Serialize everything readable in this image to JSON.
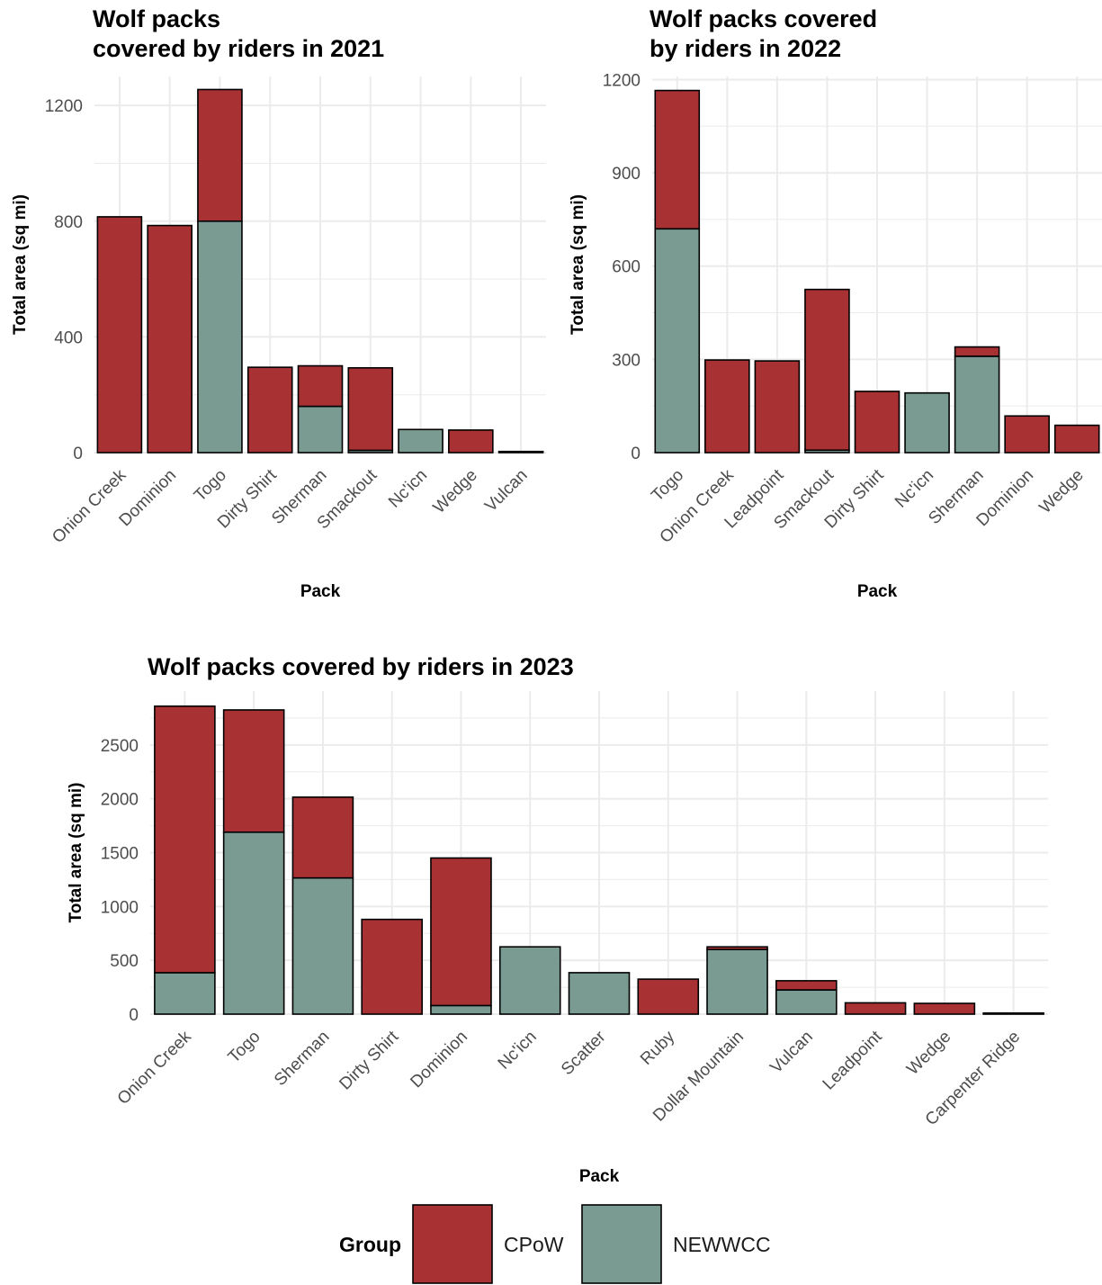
{
  "chart_data": [
    {
      "type": "bar",
      "stacked": true,
      "title": [
        "Wolf packs",
        "covered by riders in 2021"
      ],
      "xlabel": "Pack",
      "ylabel": "Total area (sq mi)",
      "ylim": [
        0,
        1300
      ],
      "yticks": [
        0,
        400,
        800,
        1200
      ],
      "categories": [
        "Onion Creek",
        "Dominion",
        "Togo",
        "Dirty Shirt",
        "Sherman",
        "Smackout",
        "Nc'icn",
        "Wedge",
        "Vulcan"
      ],
      "series": [
        {
          "name": "NEWWCC",
          "values": [
            0,
            0,
            800,
            0,
            160,
            8,
            80,
            0,
            0
          ]
        },
        {
          "name": "CPoW",
          "values": [
            815,
            785,
            455,
            295,
            140,
            285,
            0,
            78,
            4
          ]
        }
      ]
    },
    {
      "type": "bar",
      "stacked": true,
      "title": [
        "Wolf packs covered",
        "by riders in 2022"
      ],
      "xlabel": "Pack",
      "ylabel": "Total area (sq mi)",
      "ylim": [
        0,
        1210
      ],
      "yticks": [
        0,
        300,
        600,
        900,
        1200
      ],
      "categories": [
        "Togo",
        "Onion Creek",
        "Leadpoint",
        "Smackout",
        "Dirty Shirt",
        "Nc'icn",
        "Sherman",
        "Dominion",
        "Wedge"
      ],
      "series": [
        {
          "name": "NEWWCC",
          "values": [
            720,
            0,
            0,
            8,
            0,
            192,
            310,
            0,
            0
          ]
        },
        {
          "name": "CPoW",
          "values": [
            445,
            298,
            295,
            517,
            197,
            0,
            30,
            118,
            88
          ]
        }
      ]
    },
    {
      "type": "bar",
      "stacked": true,
      "title": "Wolf packs covered by riders in 2023",
      "xlabel": "Pack",
      "ylabel": "Total area (sq mi)",
      "ylim": [
        0,
        3000
      ],
      "yticks": [
        0,
        500,
        1000,
        1500,
        2000,
        2500
      ],
      "categories": [
        "Onion Creek",
        "Togo",
        "Sherman",
        "Dirty Shirt",
        "Dominion",
        "Nc'icn",
        "Scatter",
        "Ruby",
        "Dollar Mountain",
        "Vulcan",
        "Leadpoint",
        "Wedge",
        "Carpenter Ridge"
      ],
      "series": [
        {
          "name": "NEWWCC",
          "values": [
            385,
            1690,
            1265,
            0,
            80,
            625,
            385,
            0,
            600,
            225,
            0,
            0,
            0
          ]
        },
        {
          "name": "CPoW",
          "values": [
            2475,
            1135,
            750,
            880,
            1370,
            0,
            0,
            325,
            25,
            85,
            105,
            100,
            10
          ]
        }
      ]
    }
  ],
  "legend": {
    "title": "Group",
    "items": [
      {
        "label": "CPoW",
        "color": "#a83133"
      },
      {
        "label": "NEWWCC",
        "color": "#7a9b92"
      }
    ]
  },
  "colors": {
    "CPoW": "#a83133",
    "NEWWCC": "#7a9b92",
    "grid": "#ebebeb"
  }
}
